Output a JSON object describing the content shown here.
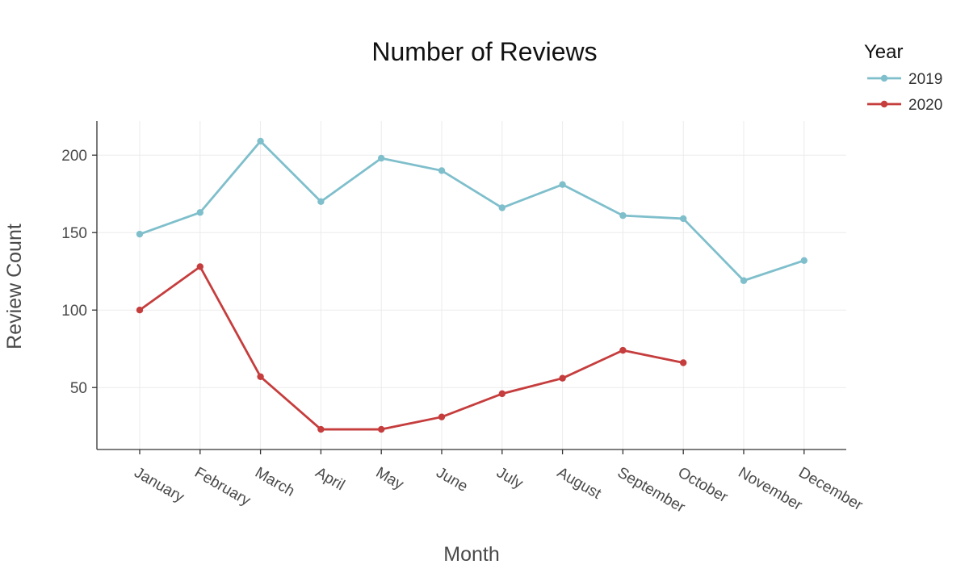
{
  "chart_data": {
    "type": "line",
    "title": "Number of Reviews",
    "xlabel": "Month",
    "ylabel": "Review Count",
    "categories": [
      "January",
      "February",
      "March",
      "April",
      "May",
      "June",
      "July",
      "August",
      "September",
      "October",
      "November",
      "December"
    ],
    "yticks": [
      50,
      100,
      150,
      200
    ],
    "ylim": [
      10,
      222
    ],
    "grid": true,
    "legend": {
      "title": "Year",
      "position": "top-right"
    },
    "series": [
      {
        "name": "2019",
        "color": "#7fbfcc",
        "values": [
          149,
          163,
          209,
          170,
          198,
          190,
          166,
          181,
          161,
          159,
          119,
          132
        ]
      },
      {
        "name": "2020",
        "color": "#c63d3d",
        "values": [
          100,
          128,
          57,
          23,
          23,
          31,
          46,
          56,
          74,
          66,
          null,
          null
        ]
      }
    ]
  }
}
